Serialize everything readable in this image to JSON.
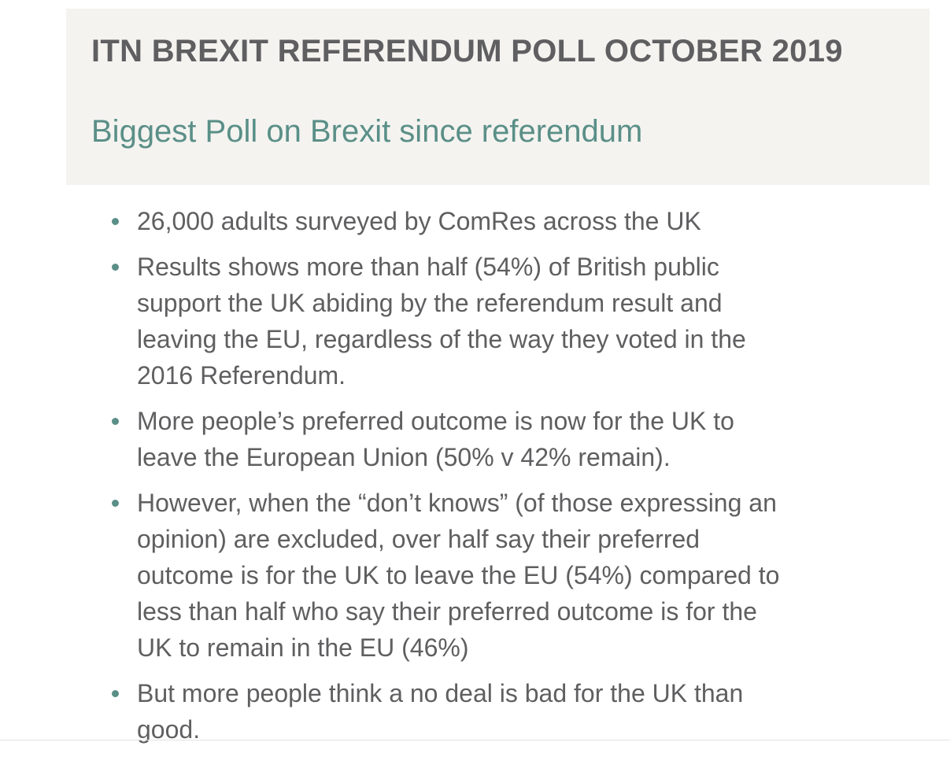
{
  "header": {
    "title": "ITN BREXIT REFERENDUM POLL OCTOBER 2019",
    "subtitle": "Biggest Poll on Brexit since referendum"
  },
  "accent_color": "#5a8f87",
  "bullets": [
    {
      "lines": [
        "26,000 adults surveyed by ComRes across the UK"
      ]
    },
    {
      "lines": [
        "Results shows more than half (54%) of British public",
        "support the UK abiding by the referendum result and",
        "leaving the EU, regardless of the way they voted in the",
        "2016 Referendum."
      ]
    },
    {
      "lines": [
        "More people’s preferred outcome is now for the UK to",
        "leave the European Union (50% v 42% remain)."
      ]
    },
    {
      "lines": [
        "However, when the “don’t knows” (of those expressing an",
        "opinion) are excluded, over half say their preferred",
        "outcome is for the UK to leave the EU (54%) compared to",
        "less than half who say their preferred outcome is for the",
        "UK to remain in the EU (46%)"
      ]
    },
    {
      "lines": [
        "But more people think a no deal is bad for the UK than",
        "good."
      ]
    }
  ]
}
